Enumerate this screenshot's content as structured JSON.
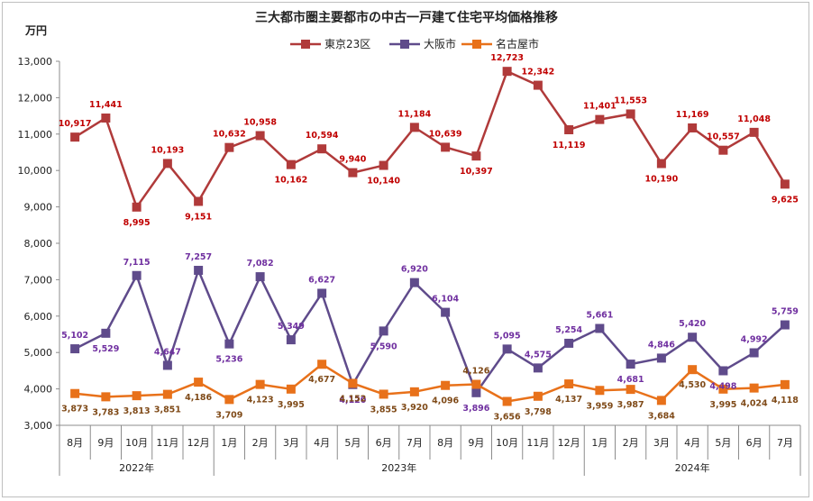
{
  "chart_data": {
    "type": "line",
    "title": "三大都市圏主要都市の中古一戸建て住宅平均価格推移",
    "unit_label": "万円",
    "ylim": [
      3000,
      13000
    ],
    "ytick_step": 1000,
    "grid": false,
    "legend_position": "top",
    "categories": [
      "8月",
      "9月",
      "10月",
      "11月",
      "12月",
      "1月",
      "2月",
      "3月",
      "4月",
      "5月",
      "6月",
      "7月",
      "8月",
      "9月",
      "10月",
      "11月",
      "12月",
      "1月",
      "2月",
      "3月",
      "4月",
      "5月",
      "6月",
      "7月"
    ],
    "year_groups": [
      {
        "label": "2022年",
        "span": 5
      },
      {
        "label": "2023年",
        "span": 12
      },
      {
        "label": "2024年",
        "span": 7
      }
    ],
    "series": [
      {
        "name": "東京23区",
        "color": "#b03a3a",
        "label_color": "#c00000",
        "values": [
          10917,
          11441,
          8995,
          10193,
          9151,
          10632,
          10958,
          10162,
          10594,
          9940,
          10140,
          11184,
          10639,
          10397,
          12723,
          12342,
          11119,
          11401,
          11553,
          10190,
          11169,
          10557,
          11048,
          9625
        ],
        "label_pos": [
          "above",
          "above",
          "below",
          "above",
          "below",
          "above",
          "above",
          "below",
          "above",
          "above",
          "below",
          "above",
          "above",
          "below",
          "above",
          "above",
          "below",
          "above",
          "above",
          "below",
          "above",
          "above",
          "above",
          "below"
        ]
      },
      {
        "name": "大阪市",
        "color": "#5f4b8b",
        "label_color": "#7030a0",
        "values": [
          5102,
          5529,
          7115,
          4647,
          7257,
          5236,
          7082,
          5349,
          6627,
          4120,
          5590,
          6920,
          6104,
          3896,
          5095,
          4575,
          5254,
          5661,
          4681,
          4846,
          5420,
          4498,
          4992,
          5759
        ],
        "label_pos": [
          "above",
          "below",
          "above",
          "above",
          "above",
          "below",
          "above",
          "above",
          "above",
          "below",
          "below",
          "above",
          "above",
          "below",
          "above",
          "above",
          "above",
          "above",
          "below",
          "above",
          "above",
          "below",
          "above",
          "above"
        ]
      },
      {
        "name": "名古屋市",
        "color": "#e8711a",
        "label_color": "#7f4a18",
        "values": [
          3873,
          3783,
          3813,
          3851,
          4186,
          3709,
          4123,
          3995,
          4677,
          4152,
          3855,
          3920,
          4096,
          4126,
          3656,
          3798,
          4137,
          3959,
          3987,
          3684,
          4530,
          3995,
          4024,
          4118
        ],
        "label_pos": [
          "below",
          "below",
          "below",
          "below",
          "below",
          "below",
          "below",
          "below",
          "below",
          "below",
          "below",
          "below",
          "below",
          "above",
          "below",
          "below",
          "below",
          "below",
          "below",
          "below",
          "below",
          "below",
          "below",
          "below"
        ]
      }
    ]
  }
}
